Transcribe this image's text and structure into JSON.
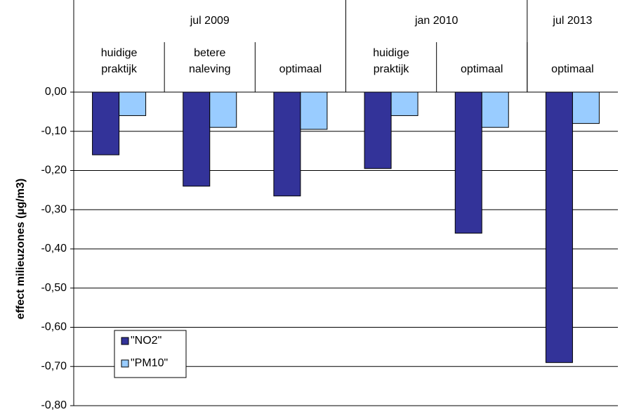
{
  "chart_data": {
    "type": "bar",
    "ylabel": "effect milieuzones (µg/m3)",
    "groups": [
      {
        "name": "jul 2009",
        "count": 3
      },
      {
        "name": "jan 2010",
        "count": 2
      },
      {
        "name": "jul 2013",
        "count": 1
      }
    ],
    "categories": [
      "huidige praktijk",
      "betere naleving",
      "optimaal",
      "huidige praktijk",
      "optimaal",
      "optimaal"
    ],
    "series": [
      {
        "name": "\"NO2\"",
        "color": "#333399",
        "values": [
          -0.16,
          -0.24,
          -0.265,
          -0.195,
          -0.36,
          -0.69
        ]
      },
      {
        "name": "\"PM10\"",
        "color": "#99ccff",
        "values": [
          -0.06,
          -0.09,
          -0.095,
          -0.06,
          -0.09,
          -0.08
        ]
      }
    ],
    "ylim": [
      -0.8,
      0
    ],
    "yticks": [
      {
        "value": 0,
        "label": "0,00"
      },
      {
        "value": -0.1,
        "label": "-0,10"
      },
      {
        "value": -0.2,
        "label": "-0,20"
      },
      {
        "value": -0.3,
        "label": "-0,30"
      },
      {
        "value": -0.4,
        "label": "-0,40"
      },
      {
        "value": -0.5,
        "label": "-0,50"
      },
      {
        "value": -0.6,
        "label": "-0,60"
      },
      {
        "value": -0.7,
        "label": "-0,70"
      },
      {
        "value": -0.8,
        "label": "-0,80"
      }
    ],
    "grid": true,
    "legend": "lower left"
  }
}
